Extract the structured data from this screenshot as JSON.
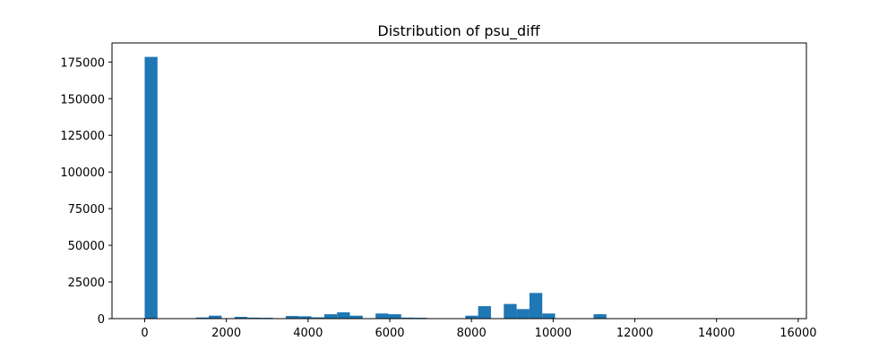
{
  "chart_data": {
    "type": "bar",
    "title": "Distribution of psu_diff",
    "xlabel": "",
    "ylabel": "",
    "xlim": [
      -800,
      16200
    ],
    "ylim": [
      0,
      188000
    ],
    "x_ticks": [
      0,
      2000,
      4000,
      6000,
      8000,
      10000,
      12000,
      14000,
      16000
    ],
    "y_ticks": [
      0,
      25000,
      50000,
      75000,
      100000,
      125000,
      150000,
      175000
    ],
    "bar_color": "#1f77b4",
    "grid": false,
    "legend": "none",
    "bins": [
      {
        "x0": 0,
        "x1": 314,
        "count": 178500
      },
      {
        "x0": 1256,
        "x1": 1570,
        "count": 800
      },
      {
        "x0": 1570,
        "x1": 1884,
        "count": 2000
      },
      {
        "x0": 2198,
        "x1": 2512,
        "count": 1200
      },
      {
        "x0": 2512,
        "x1": 2826,
        "count": 700
      },
      {
        "x0": 2826,
        "x1": 3140,
        "count": 600
      },
      {
        "x0": 3454,
        "x1": 3768,
        "count": 1800
      },
      {
        "x0": 3768,
        "x1": 4082,
        "count": 1600
      },
      {
        "x0": 4082,
        "x1": 4396,
        "count": 900
      },
      {
        "x0": 4396,
        "x1": 4710,
        "count": 3000
      },
      {
        "x0": 4710,
        "x1": 5024,
        "count": 4300
      },
      {
        "x0": 5024,
        "x1": 5338,
        "count": 2000
      },
      {
        "x0": 5652,
        "x1": 5966,
        "count": 3500
      },
      {
        "x0": 5966,
        "x1": 6280,
        "count": 3000
      },
      {
        "x0": 6280,
        "x1": 6594,
        "count": 700
      },
      {
        "x0": 6594,
        "x1": 6908,
        "count": 600
      },
      {
        "x0": 7850,
        "x1": 8164,
        "count": 2000
      },
      {
        "x0": 8164,
        "x1": 8478,
        "count": 8500
      },
      {
        "x0": 8792,
        "x1": 9106,
        "count": 10000
      },
      {
        "x0": 9106,
        "x1": 9420,
        "count": 6500
      },
      {
        "x0": 9420,
        "x1": 9734,
        "count": 17500
      },
      {
        "x0": 9734,
        "x1": 10048,
        "count": 3500
      },
      {
        "x0": 10990,
        "x1": 11304,
        "count": 3000
      }
    ]
  }
}
